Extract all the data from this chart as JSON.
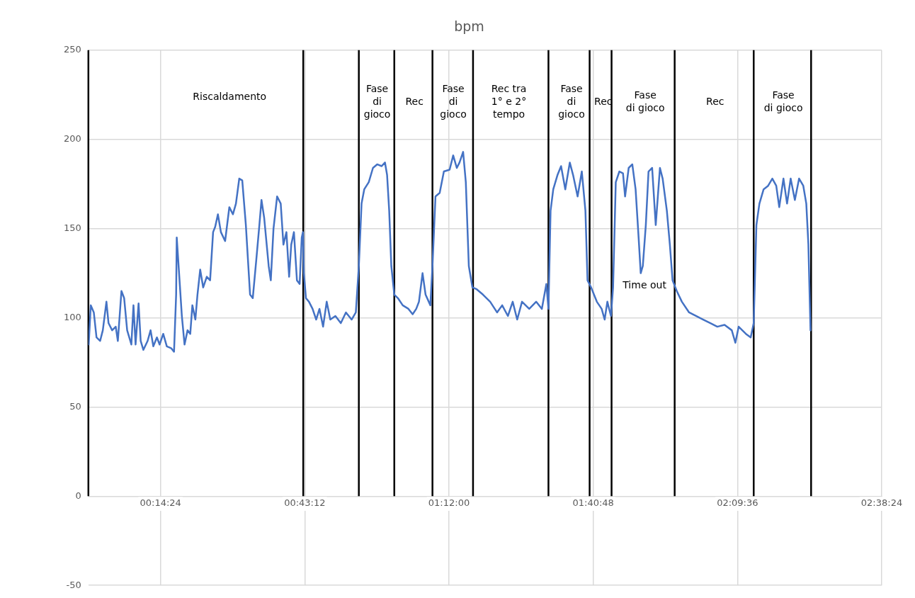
{
  "chart_data": {
    "type": "line",
    "title": "bpm",
    "xlim": [
      0,
      2.64
    ],
    "ylim": [
      -50,
      250
    ],
    "xticks": [
      {
        "value": 0.24,
        "label": "00:14:24"
      },
      {
        "value": 0.72,
        "label": "00:43:12"
      },
      {
        "value": 1.2,
        "label": "01:12:00"
      },
      {
        "value": 1.68,
        "label": "01:40:48"
      },
      {
        "value": 2.16,
        "label": "02:09:36"
      },
      {
        "value": 2.64,
        "label": "02:38:24"
      }
    ],
    "yticks": [
      -50,
      0,
      50,
      100,
      150,
      200,
      250
    ],
    "grid": true,
    "legend": false,
    "marker": "none",
    "line_style": "solid",
    "series": [
      {
        "color": "#4472c4",
        "x": [
          0.001,
          0.008,
          0.018,
          0.027,
          0.039,
          0.048,
          0.06,
          0.067,
          0.079,
          0.091,
          0.098,
          0.11,
          0.119,
          0.129,
          0.143,
          0.15,
          0.157,
          0.167,
          0.174,
          0.183,
          0.197,
          0.207,
          0.216,
          0.228,
          0.237,
          0.249,
          0.261,
          0.275,
          0.285,
          0.292,
          0.294,
          0.301,
          0.311,
          0.32,
          0.33,
          0.339,
          0.346,
          0.356,
          0.363,
          0.372,
          0.382,
          0.394,
          0.405,
          0.415,
          0.422,
          0.431,
          0.441,
          0.455,
          0.469,
          0.481,
          0.491,
          0.502,
          0.512,
          0.524,
          0.538,
          0.547,
          0.559,
          0.569,
          0.576,
          0.585,
          0.6,
          0.607,
          0.616,
          0.628,
          0.64,
          0.649,
          0.659,
          0.668,
          0.675,
          0.684,
          0.694,
          0.703,
          0.71,
          0.714,
          0.717,
          0.724,
          0.734,
          0.746,
          0.758,
          0.769,
          0.781,
          0.793,
          0.805,
          0.822,
          0.84,
          0.857,
          0.876,
          0.89,
          0.9,
          0.909,
          0.918,
          0.933,
          0.947,
          0.961,
          0.976,
          0.987,
          0.994,
          1.001,
          1.008,
          1.018,
          1.03,
          1.046,
          1.065,
          1.079,
          1.091,
          1.1,
          1.112,
          1.122,
          1.138,
          1.145,
          1.155,
          1.169,
          1.183,
          1.202,
          1.214,
          1.226,
          1.235,
          1.247,
          1.256,
          1.266,
          1.278,
          1.292,
          1.313,
          1.337,
          1.36,
          1.377,
          1.396,
          1.412,
          1.427,
          1.443,
          1.467,
          1.49,
          1.509,
          1.524,
          1.531,
          1.538,
          1.547,
          1.561,
          1.573,
          1.587,
          1.602,
          1.613,
          1.628,
          1.642,
          1.654,
          1.661,
          1.673,
          1.692,
          1.708,
          1.718,
          1.727,
          1.739,
          1.746,
          1.755,
          1.767,
          1.779,
          1.786,
          1.798,
          1.81,
          1.821,
          1.831,
          1.838,
          1.845,
          1.855,
          1.864,
          1.876,
          1.888,
          1.902,
          1.911,
          1.925,
          1.935,
          1.944,
          1.958,
          1.975,
          1.999,
          2.022,
          2.046,
          2.07,
          2.093,
          2.117,
          2.141,
          2.153,
          2.164,
          2.188,
          2.204,
          2.214,
          2.223,
          2.233,
          2.247,
          2.262,
          2.276,
          2.289,
          2.299,
          2.313,
          2.325,
          2.337,
          2.351,
          2.365,
          2.379,
          2.389,
          2.396,
          2.403
        ],
        "values": [
          85,
          107,
          103,
          89,
          87,
          93,
          109,
          97,
          93,
          95,
          87,
          115,
          111,
          93,
          85,
          107,
          85,
          108,
          87,
          82,
          87,
          93,
          84,
          89,
          85,
          91,
          84,
          83,
          81,
          113,
          145,
          127,
          101,
          85,
          93,
          91,
          107,
          99,
          113,
          127,
          117,
          123,
          121,
          148,
          151,
          158,
          148,
          143,
          162,
          158,
          164,
          178,
          177,
          152,
          113,
          111,
          133,
          152,
          166,
          156,
          129,
          121,
          150,
          168,
          164,
          141,
          148,
          123,
          141,
          148,
          121,
          119,
          145,
          148,
          125,
          111,
          109,
          105,
          99,
          105,
          95,
          109,
          99,
          101,
          97,
          103,
          99,
          103,
          129,
          164,
          172,
          176,
          184,
          186,
          185,
          187,
          180,
          160,
          129,
          113,
          111,
          107,
          105,
          102,
          105,
          109,
          125,
          113,
          107,
          129,
          168,
          170,
          182,
          183,
          191,
          184,
          187,
          193,
          176,
          129,
          117,
          116,
          113,
          109,
          103,
          107,
          101,
          109,
          99,
          109,
          105,
          109,
          105,
          119,
          105,
          160,
          172,
          180,
          185,
          172,
          187,
          180,
          168,
          182,
          160,
          121,
          117,
          109,
          105,
          99,
          109,
          101,
          117,
          176,
          182,
          181,
          168,
          184,
          186,
          172,
          145,
          125,
          129,
          152,
          182,
          184,
          152,
          184,
          178,
          160,
          141,
          121,
          115,
          109,
          103,
          101,
          99,
          97,
          95,
          96,
          93,
          86,
          95,
          91,
          89,
          97,
          152,
          164,
          172,
          174,
          178,
          174,
          162,
          178,
          164,
          178,
          166,
          178,
          174,
          164,
          141,
          93
        ]
      }
    ],
    "ref_lines": [
      {
        "axis": "x",
        "value": 0,
        "color": "#000000"
      },
      {
        "axis": "x",
        "value": 0.715,
        "color": "#000000"
      },
      {
        "axis": "x",
        "value": 0.9,
        "color": "#000000"
      },
      {
        "axis": "x",
        "value": 1.018,
        "color": "#000000"
      },
      {
        "axis": "x",
        "value": 1.145,
        "color": "#000000"
      },
      {
        "axis": "x",
        "value": 1.28,
        "color": "#000000"
      },
      {
        "axis": "x",
        "value": 1.531,
        "color": "#000000"
      },
      {
        "axis": "x",
        "value": 1.668,
        "color": "#000000"
      },
      {
        "axis": "x",
        "value": 1.741,
        "color": "#000000"
      },
      {
        "axis": "x",
        "value": 1.951,
        "color": "#000000"
      },
      {
        "axis": "x",
        "value": 2.214,
        "color": "#000000"
      },
      {
        "axis": "x",
        "value": 2.405,
        "color": "#000000"
      }
    ],
    "annotations": [
      "Riscaldamento",
      "Fase\ndi\ngioco",
      "Rec",
      "Fase\ndi\ngioco",
      "Rec tra\n1° e 2°\ntempo",
      "Fase\ndi\ngioco",
      "Rec",
      "Fase\ndi gioco",
      "Rec",
      "Fase\ndi gioco",
      "Time out"
    ]
  }
}
